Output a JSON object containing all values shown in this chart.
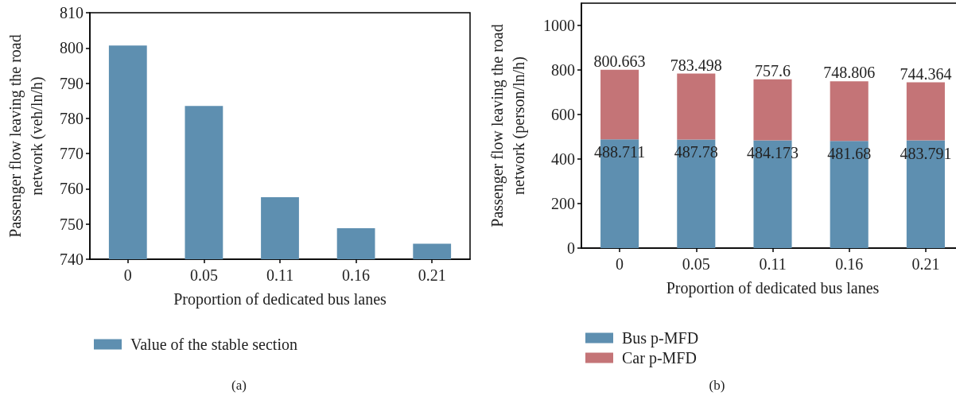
{
  "chart_data": [
    {
      "type": "bar",
      "categories": [
        "0",
        "0.05",
        "0.11",
        "0.16",
        "0.21"
      ],
      "series": [
        {
          "name": "Value of the stable section",
          "color": "#5e8fb0",
          "values": [
            800.7,
            783.5,
            757.6,
            748.8,
            744.4
          ]
        }
      ],
      "xlabel": "Proportion of dedicated bus lanes",
      "ylabel": "Passenger flow leaving the road network (veh/ln/h)",
      "ylim": [
        740,
        810
      ],
      "yticks": [
        740,
        750,
        760,
        770,
        780,
        790,
        800,
        810
      ],
      "legend": "bottom left",
      "annotations": [
        "(a)"
      ]
    },
    {
      "type": "bar",
      "stacked": true,
      "categories": [
        "0",
        "0.05",
        "0.11",
        "0.16",
        "0.21"
      ],
      "series": [
        {
          "name": "Bus p-MFD",
          "color": "#5e8fb0",
          "values": [
            488.711,
            487.78,
            484.173,
            481.68,
            483.791
          ],
          "value_labels": [
            "488.711",
            "487.78",
            "484.173",
            "481.68",
            "483.791"
          ]
        },
        {
          "name": "Car p-MFD",
          "color": "#c47477",
          "values": [
            311.952,
            295.718,
            273.427,
            267.126,
            260.573
          ]
        }
      ],
      "totals": [
        "800.663",
        "783.498",
        "757.6",
        "748.806",
        "744.364"
      ],
      "xlabel": "Proportion of dedicated bus lanes",
      "ylabel": "Passenger flow leaving the road network (person/ln/h)",
      "ylim": [
        0,
        1100
      ],
      "yticks": [
        0,
        200,
        400,
        600,
        800,
        1000
      ],
      "legend": "bottom left",
      "annotations": [
        "(b)"
      ]
    }
  ]
}
